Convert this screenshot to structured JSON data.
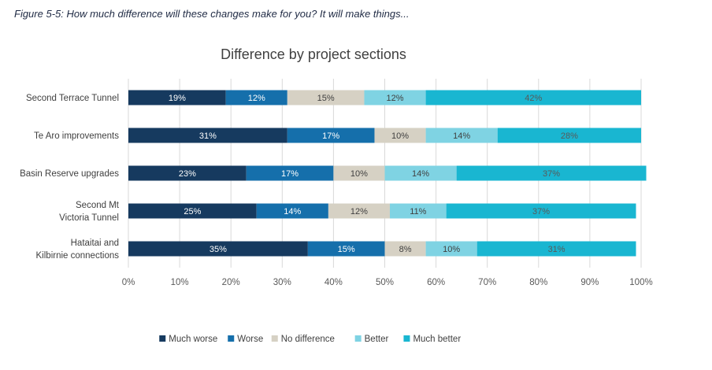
{
  "figure_caption": "Figure 5-5: How much difference will these changes make for you? It will make things...",
  "chart_data": {
    "type": "bar",
    "orientation": "horizontal",
    "stacked": true,
    "title": "Difference by project sections",
    "categories": [
      "Second Terrace Tunnel",
      "Te Aro improvements",
      "Basin Reserve upgrades",
      "Second Mt Victoria Tunnel",
      "Hataitai and Kilbirnie connections"
    ],
    "series": [
      {
        "name": "Much worse",
        "color": "#163a5f",
        "values": [
          19,
          31,
          23,
          25,
          35
        ]
      },
      {
        "name": "Worse",
        "color": "#156fab",
        "values": [
          12,
          17,
          17,
          14,
          15
        ]
      },
      {
        "name": "No difference",
        "color": "#d6d1c4",
        "values": [
          15,
          10,
          10,
          12,
          8
        ]
      },
      {
        "name": "Better",
        "color": "#7fd3e3",
        "values": [
          12,
          14,
          14,
          11,
          10
        ]
      },
      {
        "name": "Much better",
        "color": "#19b6d1",
        "values": [
          42,
          28,
          37,
          37,
          31
        ]
      }
    ],
    "data_label_colors": {
      "Much worse": "#ffffff",
      "Worse": "#ffffff",
      "No difference": "#404040",
      "Better": "#404040",
      "Much better": "#595959"
    },
    "xlim": [
      0,
      100
    ],
    "xticks": [
      "0%",
      "10%",
      "20%",
      "30%",
      "40%",
      "50%",
      "60%",
      "70%",
      "80%",
      "90%",
      "100%"
    ],
    "grid": true,
    "legend_position": "bottom"
  }
}
